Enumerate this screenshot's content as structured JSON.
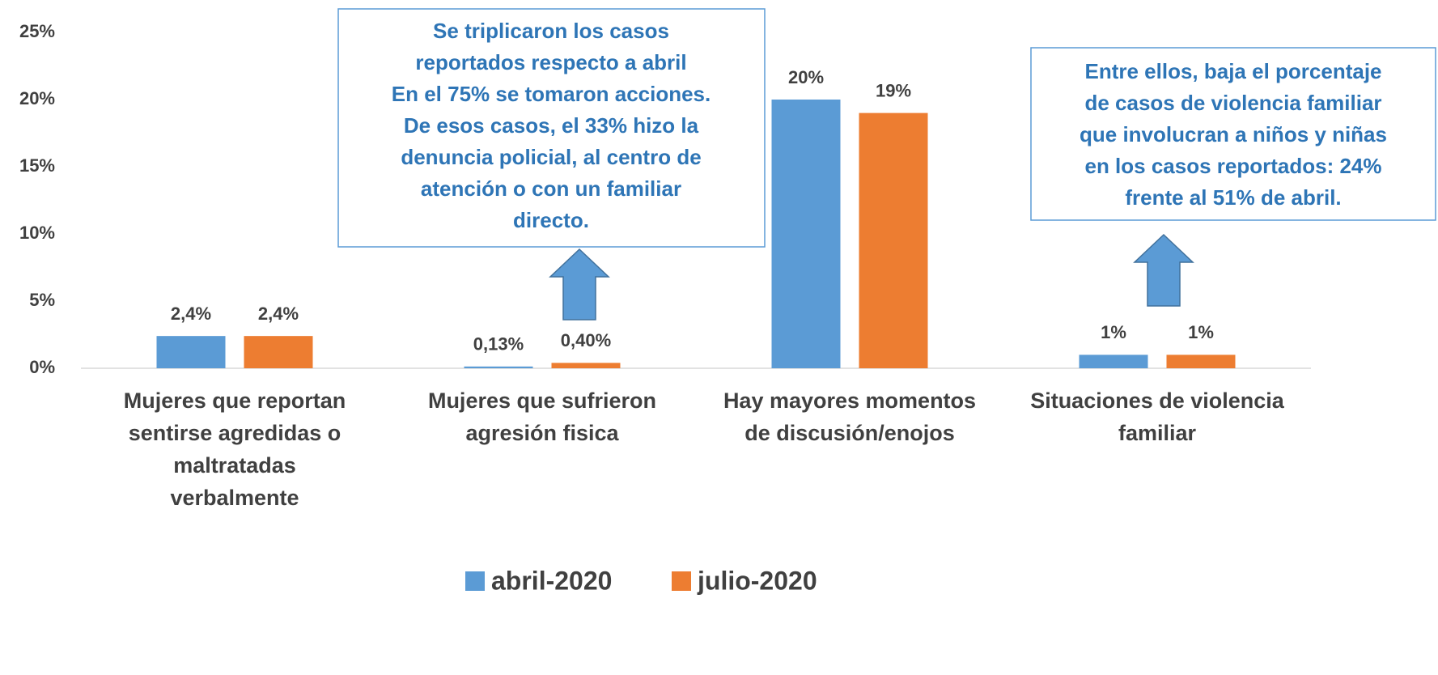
{
  "chart_data": {
    "type": "bar",
    "categories": [
      [
        "Mujeres que reportan",
        "sentirse agredidas o",
        "maltratadas",
        "verbalmente"
      ],
      [
        "Mujeres que sufrieron",
        "agresión fisica"
      ],
      [
        "Hay mayores momentos",
        "de discusión/enojos"
      ],
      [
        "Situaciones de violencia",
        "familiar"
      ]
    ],
    "series": [
      {
        "name": "abril-2020",
        "color": "#5b9bd5",
        "values": [
          2.4,
          0.13,
          20,
          1
        ],
        "value_labels": [
          "2,4%",
          "0,13%",
          "20%",
          "1%"
        ]
      },
      {
        "name": "julio-2020",
        "color": "#ed7d31",
        "values": [
          2.4,
          0.4,
          19,
          1
        ],
        "value_labels": [
          "2,4%",
          "0,40%",
          "19%",
          "1%"
        ]
      }
    ],
    "ylim": [
      0,
      25
    ],
    "yticks": [
      {
        "value": 0,
        "label": "0%"
      },
      {
        "value": 5,
        "label": "5%"
      },
      {
        "value": 10,
        "label": "10%"
      },
      {
        "value": 15,
        "label": "15%"
      },
      {
        "value": 20,
        "label": "20%"
      },
      {
        "value": 25,
        "label": "25%"
      }
    ],
    "grid": false,
    "legend": "bottom",
    "annotations": [
      {
        "text": [
          "Se triplicaron los casos",
          "reportados respecto a abril",
          "En el 75% se tomaron acciones.",
          "De esos casos, el 33% hizo la",
          "denuncia policial, al centro de",
          "atención o con un familiar",
          "directo."
        ]
      },
      {
        "text": [
          "Entre ellos, baja el porcentaje",
          "de casos de violencia familiar",
          "que involucran a niños y niñas",
          "en los casos reportados: 24%",
          "frente al 51% de abril."
        ]
      }
    ]
  }
}
